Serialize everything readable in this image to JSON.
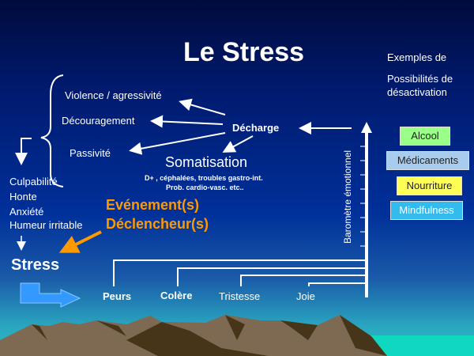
{
  "title": "Le Stress",
  "examples": {
    "line1": "Exemples de",
    "line2": "Possibilités de",
    "line3": "désactivation",
    "items": [
      {
        "label": "Alcool",
        "color": "#99ff88"
      },
      {
        "label": "Médicaments",
        "color": "#a8ccee"
      },
      {
        "label": "Nourriture",
        "color": "#ffff55"
      },
      {
        "label": "Mindfulness",
        "color": "#33bbee"
      }
    ]
  },
  "reactions": [
    "Violence / agressivité",
    "Découragement",
    "Passivité"
  ],
  "decharge": "Décharge",
  "somatisation": {
    "title": "Somatisation",
    "line1": "D+ , céphalées, troubles gastro-int.",
    "line2": "Prob. cardio-vasc. etc.."
  },
  "consequences": [
    "Culpabilité",
    "Honte",
    "Anxiété",
    "Humeur irritable"
  ],
  "stress": "Stress",
  "triggers": {
    "line1": "Evénement(s)",
    "line2": "Déclencheur(s)",
    "color": "#ff9900"
  },
  "emotions": [
    "Peurs",
    "Colère",
    "Tristesse",
    "Joie"
  ],
  "barometer": "Baromètre émotionnel"
}
